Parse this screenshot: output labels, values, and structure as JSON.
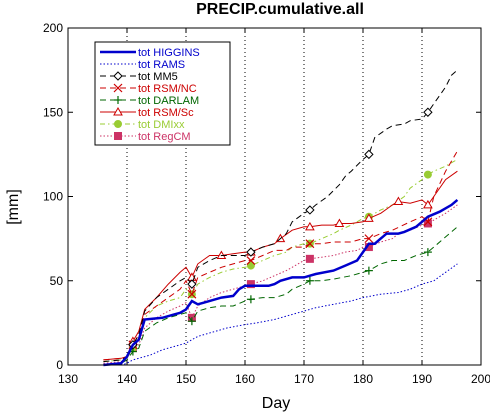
{
  "chart_data": {
    "type": "line",
    "title": "PRECIP.cumulative.all",
    "xlabel": "Day",
    "ylabel": "[mm]",
    "xlim": [
      130,
      200
    ],
    "ylim": [
      0,
      200
    ],
    "xticks": [
      130,
      140,
      150,
      160,
      170,
      180,
      190,
      200
    ],
    "yticks": [
      0,
      50,
      100,
      150,
      200
    ],
    "grid": "dotted vertical lines at x = 140, 150, 160, 170, 180, 190",
    "legend_position": "top-left",
    "series": [
      {
        "name": "tot HIGGINS",
        "color": "#0000cc",
        "line_style": "solid-thick",
        "marker": "none",
        "points": [
          [
            136,
            0
          ],
          [
            139,
            1
          ],
          [
            140,
            5
          ],
          [
            141,
            12
          ],
          [
            142,
            15
          ],
          [
            143,
            27
          ],
          [
            146,
            28
          ],
          [
            148,
            30
          ],
          [
            149,
            31
          ],
          [
            150,
            33
          ],
          [
            151,
            38
          ],
          [
            152,
            36
          ],
          [
            153,
            37
          ],
          [
            156,
            40
          ],
          [
            158,
            41
          ],
          [
            159,
            45
          ],
          [
            160,
            47
          ],
          [
            161,
            47
          ],
          [
            164,
            47
          ],
          [
            165,
            48
          ],
          [
            166,
            50
          ],
          [
            168,
            52
          ],
          [
            170,
            52
          ],
          [
            171,
            53
          ],
          [
            172,
            54
          ],
          [
            175,
            56
          ],
          [
            177,
            59
          ],
          [
            179,
            62
          ],
          [
            180,
            67
          ],
          [
            181,
            72
          ],
          [
            182,
            72
          ],
          [
            183,
            75
          ],
          [
            184,
            78
          ],
          [
            186,
            78
          ],
          [
            187,
            79
          ],
          [
            189,
            82
          ],
          [
            190,
            85
          ],
          [
            191,
            88
          ],
          [
            193,
            91
          ],
          [
            195,
            95
          ],
          [
            196,
            98
          ]
        ]
      },
      {
        "name": "tot RAMS",
        "color": "#0000cc",
        "line_style": "dotted",
        "marker": "none",
        "points": [
          [
            136,
            0
          ],
          [
            139,
            0
          ],
          [
            140,
            1
          ],
          [
            141,
            3
          ],
          [
            142,
            4
          ],
          [
            144,
            6
          ],
          [
            146,
            9
          ],
          [
            148,
            11
          ],
          [
            150,
            13
          ],
          [
            152,
            17
          ],
          [
            155,
            20
          ],
          [
            157,
            22
          ],
          [
            160,
            24
          ],
          [
            162,
            25
          ],
          [
            165,
            27
          ],
          [
            167,
            29
          ],
          [
            170,
            32
          ],
          [
            172,
            34
          ],
          [
            175,
            36
          ],
          [
            178,
            38
          ],
          [
            180,
            40
          ],
          [
            183,
            42
          ],
          [
            186,
            43
          ],
          [
            188,
            45
          ],
          [
            190,
            48
          ],
          [
            192,
            50
          ],
          [
            194,
            55
          ],
          [
            196,
            60
          ]
        ]
      },
      {
        "name": "tot MM5",
        "color": "#000000",
        "line_style": "dash",
        "marker": "diamond",
        "markers_at": [
          141,
          151,
          161,
          171,
          181,
          191
        ],
        "points": [
          [
            136,
            2
          ],
          [
            139,
            3
          ],
          [
            140,
            5
          ],
          [
            141,
            12
          ],
          [
            142,
            18
          ],
          [
            143,
            32
          ],
          [
            145,
            40
          ],
          [
            147,
            45
          ],
          [
            149,
            50
          ],
          [
            150,
            52
          ],
          [
            151,
            48
          ],
          [
            152,
            58
          ],
          [
            154,
            62
          ],
          [
            156,
            65
          ],
          [
            158,
            65
          ],
          [
            159,
            65
          ],
          [
            160,
            65
          ],
          [
            161,
            67
          ],
          [
            163,
            70
          ],
          [
            165,
            72
          ],
          [
            167,
            78
          ],
          [
            168,
            85
          ],
          [
            170,
            90
          ],
          [
            171,
            92
          ],
          [
            172,
            95
          ],
          [
            174,
            100
          ],
          [
            176,
            107
          ],
          [
            177,
            112
          ],
          [
            178,
            115
          ],
          [
            180,
            122
          ],
          [
            181,
            125
          ],
          [
            182,
            135
          ],
          [
            184,
            140
          ],
          [
            185,
            142
          ],
          [
            187,
            143
          ],
          [
            188,
            145
          ],
          [
            190,
            146
          ],
          [
            191,
            150
          ],
          [
            192,
            155
          ],
          [
            193,
            160
          ],
          [
            194,
            165
          ],
          [
            195,
            172
          ],
          [
            196,
            175
          ]
        ]
      },
      {
        "name": "tot RSM/NC",
        "color": "#cc0000",
        "line_style": "dash",
        "marker": "x",
        "markers_at": [
          141,
          151,
          161,
          171,
          181,
          191
        ],
        "points": [
          [
            136,
            3
          ],
          [
            139,
            4
          ],
          [
            140,
            5
          ],
          [
            141,
            12
          ],
          [
            142,
            18
          ],
          [
            143,
            30
          ],
          [
            145,
            35
          ],
          [
            147,
            40
          ],
          [
            149,
            45
          ],
          [
            150,
            50
          ],
          [
            151,
            42
          ],
          [
            152,
            52
          ],
          [
            154,
            55
          ],
          [
            156,
            58
          ],
          [
            158,
            60
          ],
          [
            160,
            62
          ],
          [
            161,
            62
          ],
          [
            163,
            65
          ],
          [
            165,
            68
          ],
          [
            167,
            68
          ],
          [
            168,
            70
          ],
          [
            170,
            70
          ],
          [
            171,
            72
          ],
          [
            173,
            72
          ],
          [
            175,
            73
          ],
          [
            178,
            73
          ],
          [
            180,
            75
          ],
          [
            181,
            75
          ],
          [
            183,
            78
          ],
          [
            185,
            80
          ],
          [
            188,
            85
          ],
          [
            190,
            88
          ],
          [
            191,
            85
          ],
          [
            192,
            100
          ],
          [
            194,
            115
          ],
          [
            196,
            127
          ]
        ]
      },
      {
        "name": "tot DARLAM",
        "color": "#006600",
        "line_style": "dash",
        "marker": "plus",
        "markers_at": [
          141,
          151,
          161,
          171,
          181,
          191
        ],
        "points": [
          [
            136,
            0
          ],
          [
            139,
            1
          ],
          [
            140,
            3
          ],
          [
            141,
            8
          ],
          [
            142,
            10
          ],
          [
            143,
            20
          ],
          [
            145,
            25
          ],
          [
            147,
            28
          ],
          [
            149,
            30
          ],
          [
            150,
            31
          ],
          [
            151,
            26
          ],
          [
            152,
            32
          ],
          [
            154,
            34
          ],
          [
            156,
            35
          ],
          [
            158,
            35
          ],
          [
            160,
            38
          ],
          [
            161,
            39
          ],
          [
            163,
            40
          ],
          [
            165,
            40
          ],
          [
            167,
            42
          ],
          [
            168,
            45
          ],
          [
            170,
            48
          ],
          [
            171,
            50
          ],
          [
            173,
            50
          ],
          [
            175,
            51
          ],
          [
            178,
            53
          ],
          [
            180,
            55
          ],
          [
            181,
            56
          ],
          [
            183,
            60
          ],
          [
            185,
            62
          ],
          [
            187,
            62
          ],
          [
            189,
            65
          ],
          [
            190,
            66
          ],
          [
            191,
            67
          ],
          [
            192,
            70
          ],
          [
            194,
            76
          ],
          [
            196,
            82
          ]
        ]
      },
      {
        "name": "tot RSM/Sc",
        "color": "#cc0000",
        "line_style": "solid-thin",
        "marker": "triangle",
        "markers_at": [
          141,
          151,
          156,
          161,
          166,
          171,
          176,
          181,
          186,
          191
        ],
        "points": [
          [
            136,
            3
          ],
          [
            139,
            4
          ],
          [
            140,
            5
          ],
          [
            141,
            14
          ],
          [
            142,
            20
          ],
          [
            143,
            33
          ],
          [
            145,
            40
          ],
          [
            147,
            48
          ],
          [
            149,
            55
          ],
          [
            150,
            58
          ],
          [
            151,
            52
          ],
          [
            152,
            60
          ],
          [
            154,
            65
          ],
          [
            156,
            65
          ],
          [
            158,
            66
          ],
          [
            160,
            67
          ],
          [
            161,
            67
          ],
          [
            163,
            70
          ],
          [
            165,
            72
          ],
          [
            166,
            75
          ],
          [
            168,
            80
          ],
          [
            170,
            82
          ],
          [
            171,
            82
          ],
          [
            173,
            83
          ],
          [
            175,
            83
          ],
          [
            176,
            84
          ],
          [
            178,
            84
          ],
          [
            180,
            85
          ],
          [
            181,
            87
          ],
          [
            183,
            90
          ],
          [
            185,
            95
          ],
          [
            186,
            97
          ],
          [
            188,
            96
          ],
          [
            190,
            98
          ],
          [
            191,
            95
          ],
          [
            192,
            100
          ],
          [
            194,
            110
          ],
          [
            196,
            115
          ]
        ]
      },
      {
        "name": "tot DMIxx",
        "color": "#99cc33",
        "line_style": "dash-dot",
        "marker": "circle",
        "markers_at": [
          141,
          151,
          161,
          171,
          181,
          191
        ],
        "points": [
          [
            136,
            2
          ],
          [
            139,
            3
          ],
          [
            140,
            4
          ],
          [
            141,
            10
          ],
          [
            142,
            15
          ],
          [
            143,
            28
          ],
          [
            145,
            35
          ],
          [
            147,
            38
          ],
          [
            149,
            40
          ],
          [
            150,
            45
          ],
          [
            151,
            42
          ],
          [
            152,
            48
          ],
          [
            154,
            52
          ],
          [
            156,
            55
          ],
          [
            158,
            57
          ],
          [
            160,
            58
          ],
          [
            161,
            59
          ],
          [
            163,
            62
          ],
          [
            165,
            65
          ],
          [
            167,
            67
          ],
          [
            168,
            70
          ],
          [
            170,
            72
          ],
          [
            171,
            72
          ],
          [
            173,
            75
          ],
          [
            175,
            78
          ],
          [
            176,
            80
          ],
          [
            178,
            83
          ],
          [
            180,
            87
          ],
          [
            181,
            88
          ],
          [
            183,
            92
          ],
          [
            185,
            95
          ],
          [
            187,
            100
          ],
          [
            188,
            105
          ],
          [
            190,
            110
          ],
          [
            191,
            113
          ],
          [
            192,
            115
          ],
          [
            194,
            118
          ],
          [
            196,
            122
          ]
        ]
      },
      {
        "name": "tot RegCM",
        "color": "#cc3366",
        "line_style": "dotted",
        "marker": "square",
        "markers_at": [
          141,
          151,
          161,
          171,
          181,
          191
        ],
        "points": [
          [
            136,
            1
          ],
          [
            139,
            2
          ],
          [
            140,
            4
          ],
          [
            141,
            10
          ],
          [
            142,
            12
          ],
          [
            143,
            22
          ],
          [
            145,
            28
          ],
          [
            147,
            32
          ],
          [
            149,
            35
          ],
          [
            150,
            37
          ],
          [
            151,
            28
          ],
          [
            152,
            35
          ],
          [
            154,
            40
          ],
          [
            156,
            43
          ],
          [
            158,
            45
          ],
          [
            160,
            47
          ],
          [
            161,
            48
          ],
          [
            163,
            50
          ],
          [
            165,
            53
          ],
          [
            167,
            56
          ],
          [
            168,
            58
          ],
          [
            170,
            62
          ],
          [
            171,
            63
          ],
          [
            173,
            64
          ],
          [
            175,
            65
          ],
          [
            177,
            67
          ],
          [
            179,
            68
          ],
          [
            180,
            70
          ],
          [
            181,
            70
          ],
          [
            183,
            73
          ],
          [
            185,
            75
          ],
          [
            186,
            78
          ],
          [
            188,
            80
          ],
          [
            190,
            83
          ],
          [
            191,
            84
          ],
          [
            192,
            86
          ],
          [
            194,
            90
          ],
          [
            196,
            95
          ]
        ]
      }
    ]
  }
}
